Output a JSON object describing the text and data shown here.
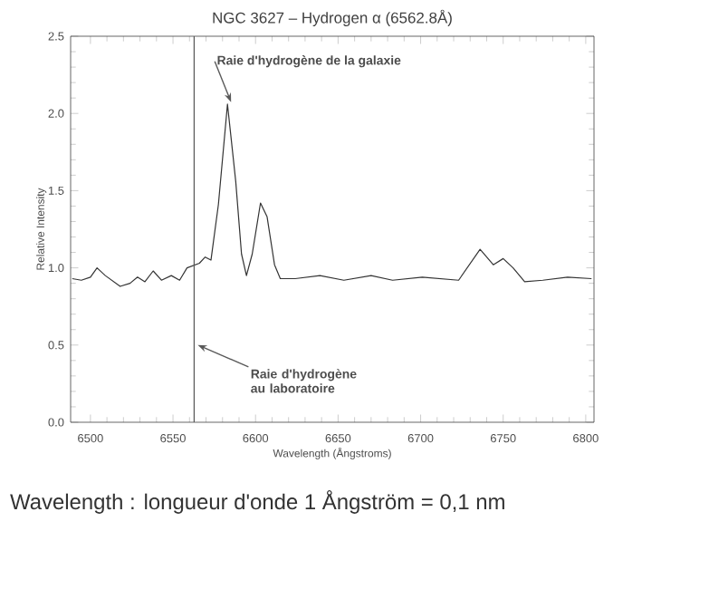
{
  "chart_data": {
    "type": "line",
    "title": "NGC 3627 – Hydrogen α (6562.8Å)",
    "xlabel": "Wavelength (Ångstroms)",
    "ylabel": "Relative Intensity",
    "xlim": [
      6488,
      6805
    ],
    "ylim": [
      0,
      2.5
    ],
    "xticks": [
      6500,
      6550,
      6600,
      6650,
      6700,
      6750,
      6800
    ],
    "yticks": [
      {
        "value": 0,
        "label": "0.0"
      },
      0.5,
      {
        "value": 1,
        "label": "1.0"
      },
      1.5,
      {
        "value": 2,
        "label": "2.0"
      },
      2.5
    ],
    "grid": false,
    "marker": "none",
    "line_style": "solid",
    "series": [
      {
        "color": "#333333",
        "x": [
          6489,
          6494.5,
          6500,
          6504,
          6509,
          6518,
          6524,
          6528.5,
          6533,
          6538,
          6543,
          6549,
          6554,
          6558.5,
          6566,
          6569.5,
          6573,
          6577.5,
          6583,
          6588,
          6591.5,
          6594.5,
          6598,
          6603,
          6607,
          6611.5,
          6615,
          6624,
          6639,
          6653.5,
          6670,
          6683,
          6701,
          6723,
          6736,
          6744,
          6750,
          6756,
          6763,
          6774,
          6789,
          6803.5
        ],
        "values": [
          0.93,
          0.92,
          0.94,
          1.0,
          0.95,
          0.88,
          0.9,
          0.94,
          0.91,
          0.98,
          0.92,
          0.95,
          0.92,
          1.0,
          1.03,
          1.07,
          1.05,
          1.41,
          2.06,
          1.56,
          1.09,
          0.95,
          1.09,
          1.42,
          1.33,
          1.02,
          0.93,
          0.93,
          0.95,
          0.92,
          0.95,
          0.92,
          0.94,
          0.92,
          1.12,
          1.02,
          1.06,
          1.0,
          0.91,
          0.92,
          0.94,
          0.93
        ]
      }
    ],
    "ref_lines": [
      {
        "axis": "x",
        "value": 6562.8,
        "color": "#555555"
      }
    ],
    "annotations": [
      {
        "text": "Raie d'hydrogène de la galaxie",
        "x": 6583,
        "y": 2.05
      },
      {
        "text": "Raie d'hydrogène au laboratoire",
        "x": 6562.8,
        "y": 0.5
      },
      "Wavelength : longueur d'onde    1 Ångström = 0,1 nm"
    ]
  }
}
